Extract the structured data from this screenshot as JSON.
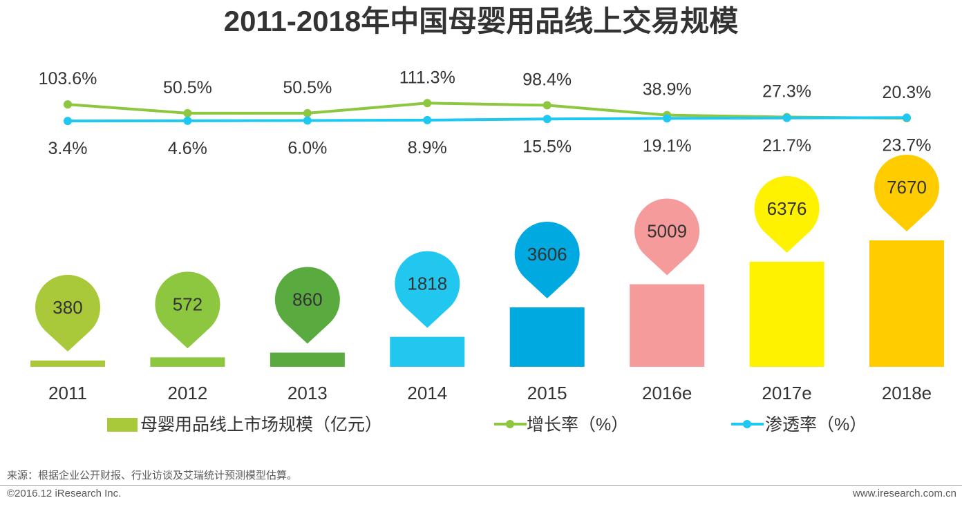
{
  "chart_data": {
    "type": "bar",
    "title": "2011-2018年中国母婴用品线上交易规模",
    "xlabel": "",
    "ylabel": "",
    "grid": false,
    "legend_position": "bottom",
    "categories": [
      "2011",
      "2012",
      "2013",
      "2014",
      "2015",
      "2016e",
      "2017e",
      "2018e"
    ],
    "series": [
      {
        "name": "母婴用品线上市场规模（亿元）",
        "type": "bar",
        "values": [
          380,
          572,
          860,
          1818,
          3606,
          5009,
          6376,
          7670
        ],
        "labels": [
          "380",
          "572",
          "860",
          "1818",
          "3606",
          "5009",
          "6376",
          "7670"
        ],
        "colors": [
          "#a9c93a",
          "#8dc63f",
          "#5aab3f",
          "#22c7f0",
          "#00a9df",
          "#f59b9c",
          "#fff200",
          "#ffcc00"
        ],
        "legend_color": "#a9c93a"
      },
      {
        "name": "增长率（%）",
        "type": "line",
        "values": [
          103.6,
          50.5,
          50.5,
          111.3,
          98.4,
          38.9,
          27.3,
          20.3
        ],
        "labels": [
          "103.6%",
          "50.5%",
          "50.5%",
          "111.3%",
          "98.4%",
          "38.9%",
          "27.3%",
          "20.3%"
        ],
        "color": "#8dc63f"
      },
      {
        "name": "渗透率（%）",
        "type": "line",
        "values": [
          3.4,
          4.6,
          6.0,
          8.9,
          15.5,
          19.1,
          21.7,
          23.7
        ],
        "labels": [
          "3.4%",
          "4.6%",
          "6.0%",
          "8.9%",
          "15.5%",
          "19.1%",
          "21.7%",
          "23.7%"
        ],
        "color": "#1ec8f0"
      }
    ]
  },
  "footer": {
    "source": "来源：根据企业公开财报、行业访谈及艾瑞统计预测模型估算。",
    "copyright": "©2016.12 iResearch Inc.",
    "website": "www.iresearch.com.cn"
  }
}
